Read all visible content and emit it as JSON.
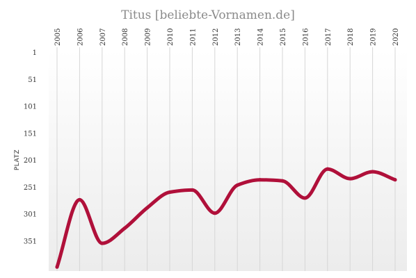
{
  "chart_data": {
    "type": "line",
    "title": "Titus  [beliebte-Vornamen.de]",
    "xlabel": "",
    "ylabel": "PLATZ",
    "y_inverted": true,
    "ylim": [
      1,
      401
    ],
    "y_ticks": [
      "1",
      "51",
      "101",
      "151",
      "201",
      "251",
      "301",
      "351"
    ],
    "x_ticks": [
      "2005",
      "2006",
      "2007",
      "2008",
      "2009",
      "2010",
      "2011",
      "2012",
      "2013",
      "2014",
      "2015",
      "2016",
      "2017",
      "2018",
      "2019",
      "2020"
    ],
    "grid": "vertical",
    "background": "gradient white to light gray",
    "series": [
      {
        "color": "#b0103a",
        "x": [
          2005,
          2006,
          2007,
          2008,
          2009,
          2010,
          2011,
          2012,
          2013,
          2014,
          2015,
          2016,
          2017,
          2018,
          2019,
          2020
        ],
        "values": [
          400,
          275,
          356,
          328,
          290,
          261,
          257,
          300,
          248,
          238,
          240,
          272,
          218,
          236,
          223,
          238
        ]
      }
    ]
  }
}
